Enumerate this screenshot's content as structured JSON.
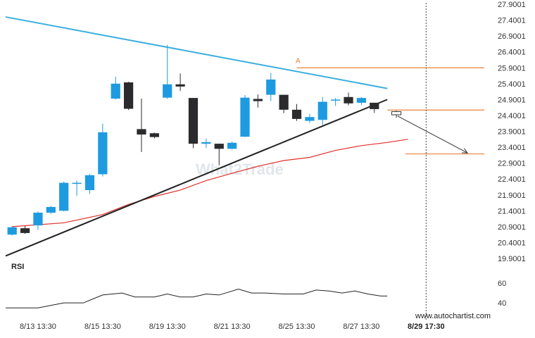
{
  "chart_data": {
    "type": "candlestick",
    "x_tick_labels": [
      "8/13 13:30",
      "8/15 13:30",
      "8/19 13:30",
      "8/21 13:30",
      "8/25 13:30",
      "8/27 13:30",
      "8/29 17:30"
    ],
    "x_tick_index": [
      2,
      7,
      12,
      17,
      22,
      27,
      32
    ],
    "current_label_bold": "8/29 17:30",
    "current_index": 32,
    "y_ticks": [
      "27.9001",
      "27.4001",
      "26.9001",
      "26.4001",
      "25.9001",
      "25.4001",
      "24.9001",
      "24.4001",
      "23.9001",
      "23.4001",
      "22.9001",
      "22.4001",
      "21.9001",
      "21.4001",
      "20.9001",
      "20.4001",
      "19.9001"
    ],
    "ylim": [
      19.9001,
      27.9001
    ],
    "xlim": [
      -0.5,
      36.5
    ],
    "candles": [
      {
        "o": 20.65,
        "h": 20.92,
        "l": 20.62,
        "c": 20.88
      },
      {
        "o": 20.85,
        "h": 20.92,
        "l": 20.67,
        "c": 20.7
      },
      {
        "o": 20.94,
        "h": 21.38,
        "l": 20.8,
        "c": 21.34
      },
      {
        "o": 21.34,
        "h": 21.55,
        "l": 21.3,
        "c": 21.52
      },
      {
        "o": 21.4,
        "h": 22.32,
        "l": 21.38,
        "c": 22.28
      },
      {
        "o": 22.28,
        "h": 22.35,
        "l": 21.87,
        "c": 22.28
      },
      {
        "o": 22.05,
        "h": 22.56,
        "l": 21.93,
        "c": 22.52
      },
      {
        "o": 22.55,
        "h": 24.14,
        "l": 22.48,
        "c": 23.87
      },
      {
        "o": 24.93,
        "h": 25.62,
        "l": 24.9,
        "c": 25.4
      },
      {
        "o": 25.44,
        "h": 25.46,
        "l": 24.57,
        "c": 24.61
      },
      {
        "o": 23.97,
        "h": 24.93,
        "l": 23.25,
        "c": 23.8
      },
      {
        "o": 23.84,
        "h": 23.86,
        "l": 23.68,
        "c": 23.72
      },
      {
        "o": 24.96,
        "h": 26.62,
        "l": 24.92,
        "c": 25.38
      },
      {
        "o": 25.38,
        "h": 25.72,
        "l": 25.17,
        "c": 25.31
      },
      {
        "o": 24.95,
        "h": 24.95,
        "l": 23.37,
        "c": 23.51
      },
      {
        "o": 23.51,
        "h": 23.67,
        "l": 23.38,
        "c": 23.56
      },
      {
        "o": 23.51,
        "h": 23.51,
        "l": 22.83,
        "c": 23.35
      },
      {
        "o": 23.35,
        "h": 23.58,
        "l": 23.33,
        "c": 23.54
      },
      {
        "o": 23.73,
        "h": 25.04,
        "l": 23.72,
        "c": 24.96
      },
      {
        "o": 24.92,
        "h": 25.06,
        "l": 24.65,
        "c": 24.85
      },
      {
        "o": 25.05,
        "h": 25.74,
        "l": 24.85,
        "c": 25.53
      },
      {
        "o": 25.05,
        "h": 25.05,
        "l": 24.47,
        "c": 24.58
      },
      {
        "o": 24.58,
        "h": 24.76,
        "l": 24.23,
        "c": 24.29
      },
      {
        "o": 24.23,
        "h": 24.45,
        "l": 24.17,
        "c": 24.35
      },
      {
        "o": 24.26,
        "h": 24.98,
        "l": 24.1,
        "c": 24.83
      },
      {
        "o": 24.9,
        "h": 24.95,
        "l": 24.7,
        "c": 24.9
      },
      {
        "o": 24.98,
        "h": 25.12,
        "l": 24.72,
        "c": 24.78
      },
      {
        "o": 24.8,
        "h": 24.98,
        "l": 24.73,
        "c": 24.95
      },
      {
        "o": 24.8,
        "h": 24.8,
        "l": 24.48,
        "c": 24.6
      }
    ],
    "candle_start_index": 0,
    "projection_candle": {
      "index": 29.7,
      "o": 24.52,
      "c": 24.42,
      "h": 24.55,
      "l": 24.33
    },
    "ma_line": [
      [
        0,
        20.9
      ],
      [
        4,
        21.02
      ],
      [
        7,
        21.28
      ],
      [
        9,
        21.6
      ],
      [
        11,
        21.85
      ],
      [
        13,
        22.05
      ],
      [
        15,
        22.35
      ],
      [
        17,
        22.58
      ],
      [
        19,
        22.8
      ],
      [
        21,
        22.98
      ],
      [
        23,
        23.08
      ],
      [
        25,
        23.3
      ],
      [
        27,
        23.45
      ],
      [
        29,
        23.55
      ],
      [
        30.6,
        23.65
      ]
    ],
    "resistance_line": [
      [
        -0.5,
        27.5
      ],
      [
        29.0,
        25.25
      ]
    ],
    "support_line": [
      [
        -0.5,
        19.98
      ],
      [
        29.0,
        24.9
      ]
    ],
    "level_upper": {
      "value": 25.9,
      "x_start": 22.0,
      "x_end": 36.5
    },
    "level_mid": {
      "value": 24.57,
      "x_start": 29.0,
      "x_end": 36.5
    },
    "level_target": {
      "value": 23.19,
      "x_start": 30.4,
      "x_end": 36.5
    },
    "projection_arrow": {
      "from": [
        29.8,
        24.38
      ],
      "to": [
        35.2,
        23.22
      ]
    },
    "pattern_point_label": "A",
    "pattern_point": [
      22.1,
      26.05
    ],
    "rsi": {
      "label": "RSI",
      "ticks": [
        "60",
        "40"
      ],
      "ylim": [
        33,
        70
      ],
      "values": [
        [
          -0.5,
          35
        ],
        [
          2,
          35
        ],
        [
          4,
          40
        ],
        [
          5.5,
          40
        ],
        [
          7,
          48
        ],
        [
          8.5,
          50
        ],
        [
          9.5,
          46
        ],
        [
          11,
          46
        ],
        [
          12,
          49
        ],
        [
          13,
          46
        ],
        [
          14,
          46
        ],
        [
          15,
          49
        ],
        [
          16,
          48
        ],
        [
          17.5,
          54
        ],
        [
          18.5,
          50
        ],
        [
          19.5,
          50
        ],
        [
          21,
          49
        ],
        [
          22.5,
          49
        ],
        [
          23.5,
          53
        ],
        [
          24.5,
          52
        ],
        [
          25.5,
          50
        ],
        [
          26.5,
          52
        ],
        [
          27.5,
          49
        ],
        [
          28.5,
          47
        ],
        [
          29,
          47
        ]
      ]
    },
    "colors": {
      "bull": "#1e9be0",
      "bear": "#2b2b2e",
      "resistance": "#3aaee0",
      "support": "#222222",
      "ma": "#e0312c",
      "levels": "#e8833a",
      "rsi_line": "#222222"
    }
  },
  "watermark_logo": "What2Trade",
  "rsi_label": "RSI",
  "footer_url": "www.autochartist.com"
}
